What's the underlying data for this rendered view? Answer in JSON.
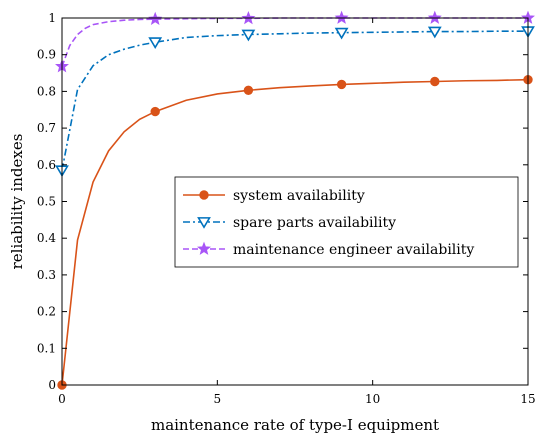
{
  "chart_data": {
    "type": "line",
    "title": "",
    "xlabel": "maintenance rate of type-I equipment",
    "ylabel": "reliability indexes",
    "xlim": [
      0,
      15
    ],
    "ylim": [
      0,
      1
    ],
    "x_ticks": [
      "0",
      "5",
      "10",
      "15"
    ],
    "y_ticks": [
      "0",
      "0.1",
      "0.2",
      "0.3",
      "0.4",
      "0.5",
      "0.6",
      "0.7",
      "0.8",
      "0.9",
      "1"
    ],
    "grid": false,
    "legend_position": "center-right",
    "series": [
      {
        "name": "system availability",
        "color": "#d95319",
        "line_style": "solid",
        "marker": "circle",
        "x": [
          0,
          0.5,
          1,
          1.5,
          2,
          2.5,
          3,
          4,
          5,
          6,
          7,
          8,
          9,
          10,
          11,
          12,
          13,
          14,
          15
        ],
        "y": [
          0,
          0.395,
          0.553,
          0.638,
          0.69,
          0.724,
          0.745,
          0.776,
          0.793,
          0.803,
          0.81,
          0.815,
          0.819,
          0.822,
          0.825,
          0.827,
          0.829,
          0.83,
          0.832
        ],
        "marker_x": [
          0,
          3,
          6,
          9,
          12,
          15
        ],
        "marker_y": [
          0,
          0.745,
          0.803,
          0.819,
          0.827,
          0.832
        ]
      },
      {
        "name": "spare parts availability",
        "color": "#0072bd",
        "line_style": "dashdot",
        "marker": "triangle-down",
        "x": [
          0,
          0.5,
          1,
          1.5,
          2,
          2.5,
          3,
          4,
          5,
          6,
          7,
          8,
          9,
          10,
          11,
          12,
          13,
          14,
          15
        ],
        "y": [
          0.585,
          0.805,
          0.87,
          0.9,
          0.915,
          0.926,
          0.934,
          0.947,
          0.952,
          0.955,
          0.957,
          0.959,
          0.96,
          0.961,
          0.962,
          0.963,
          0.963,
          0.964,
          0.964
        ],
        "marker_x": [
          0,
          3,
          6,
          9,
          12,
          15
        ],
        "marker_y": [
          0.585,
          0.934,
          0.955,
          0.96,
          0.963,
          0.964
        ]
      },
      {
        "name": "maintenance engineer availability",
        "color": "#a855f7",
        "line_style": "dashed",
        "marker": "star",
        "x": [
          0,
          0.25,
          0.5,
          0.75,
          1,
          1.5,
          2,
          2.5,
          3,
          4,
          5,
          6,
          7,
          8,
          9,
          10,
          11,
          12,
          13,
          14,
          15
        ],
        "y": [
          0.868,
          0.925,
          0.955,
          0.972,
          0.982,
          0.99,
          0.994,
          0.996,
          0.997,
          0.998,
          0.999,
          0.999,
          1,
          1,
          1,
          1,
          1,
          1,
          1,
          1,
          1
        ],
        "marker_x": [
          0,
          3,
          6,
          9,
          12,
          15
        ],
        "marker_y": [
          0.868,
          0.997,
          0.999,
          1,
          1,
          1
        ]
      }
    ]
  }
}
